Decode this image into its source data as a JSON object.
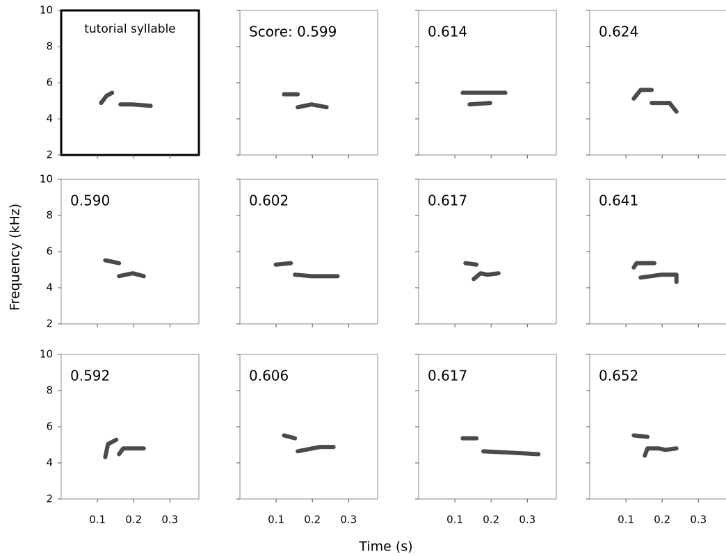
{
  "figure": {
    "y_label": "Frequency (kHz)",
    "x_label": "Time (s)",
    "ylim": [
      2,
      10
    ],
    "yticks": [
      2,
      4,
      6,
      8,
      10
    ],
    "xlim": [
      0,
      0.38
    ],
    "xticks": [
      0.1,
      0.2,
      0.3
    ],
    "panels": [
      "tutorial syllable",
      "Score: 0.599",
      "0.614",
      "0.624",
      "0.590",
      "0.602",
      "0.617",
      "0.641",
      "0.592",
      "0.606",
      "0.617",
      "0.652"
    ]
  }
}
